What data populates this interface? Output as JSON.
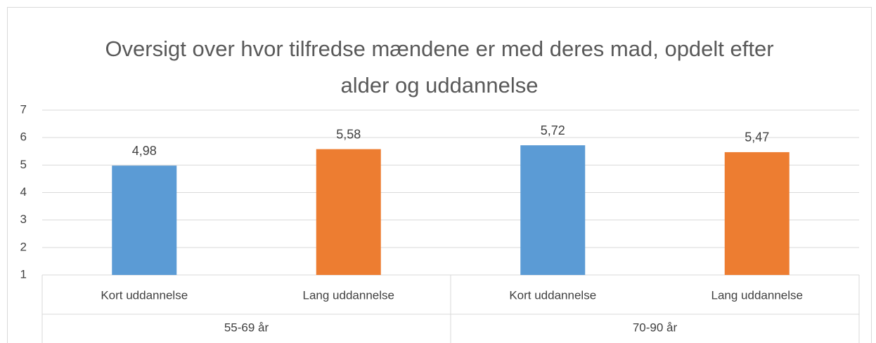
{
  "chart_data": {
    "type": "bar",
    "title": "Oversigt over hvor tilfredse mændene er med deres mad, opdelt efter alder og uddannelse",
    "categories": [
      "Kort uddannelse",
      "Lang uddannelse",
      "Kort uddannelse",
      "Lang uddannelse"
    ],
    "groups": [
      "55-69 år",
      "70-90 år"
    ],
    "values": [
      4.98,
      5.58,
      5.72,
      5.47
    ],
    "value_labels": [
      "4,98",
      "5,58",
      "5,72",
      "5,47"
    ],
    "colors": [
      "#5b9bd5",
      "#ed7d31",
      "#5b9bd5",
      "#ed7d31"
    ],
    "ylim": [
      1,
      7
    ],
    "yticks": [
      1,
      2,
      3,
      4,
      5,
      6,
      7
    ],
    "grid": true
  }
}
